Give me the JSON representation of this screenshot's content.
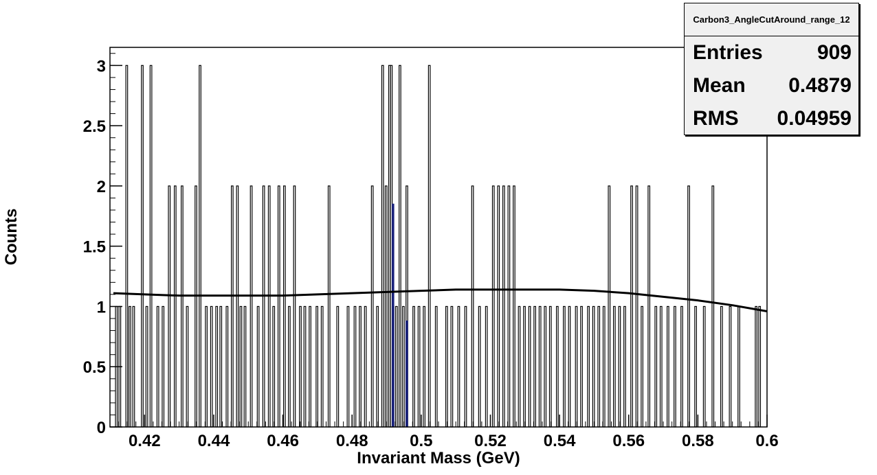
{
  "chart_data": {
    "type": "bar",
    "xlabel": "Invariant Mass (GeV)",
    "ylabel": "Counts",
    "xlim": [
      0.41,
      0.6
    ],
    "ylim": [
      0,
      3.15
    ],
    "x_ticks": [
      "0.42",
      "0.44",
      "0.46",
      "0.48",
      "0.5",
      "0.52",
      "0.54",
      "0.56",
      "0.58",
      "0.6"
    ],
    "y_ticks": [
      "0",
      "0.5",
      "1",
      "1.5",
      "2",
      "2.5",
      "3"
    ],
    "bins": {
      "x": [
        0.4116,
        0.4126,
        0.4146,
        0.4155,
        0.4166,
        0.4191,
        0.4204,
        0.4216,
        0.4236,
        0.4251,
        0.4269,
        0.4286,
        0.4306,
        0.4321,
        0.4346,
        0.4358,
        0.4376,
        0.4391,
        0.4406,
        0.4418,
        0.4436,
        0.4451,
        0.4466,
        0.4476,
        0.4488,
        0.4506,
        0.4526,
        0.4542,
        0.4558,
        0.4571,
        0.4586,
        0.4602,
        0.4616,
        0.4631,
        0.4648,
        0.4661,
        0.4676,
        0.4696,
        0.4711,
        0.4731,
        0.4756,
        0.4786,
        0.4806,
        0.4821,
        0.4836,
        0.4856,
        0.4871,
        0.4886,
        0.4896,
        0.4906,
        0.4911,
        0.4916,
        0.4926,
        0.4936,
        0.4946,
        0.4956,
        0.4976,
        0.4991,
        0.5006,
        0.5021,
        0.5041,
        0.5071,
        0.5086,
        0.5106,
        0.5126,
        0.5146,
        0.5166,
        0.5186,
        0.5206,
        0.5221,
        0.5236,
        0.5251,
        0.5266,
        0.5281,
        0.5296,
        0.5311,
        0.5326,
        0.5341,
        0.5356,
        0.5371,
        0.5391,
        0.5411,
        0.5426,
        0.5446,
        0.5461,
        0.5481,
        0.5496,
        0.5511,
        0.5526,
        0.5541,
        0.5556,
        0.5571,
        0.5586,
        0.5606,
        0.5621,
        0.5636,
        0.5656,
        0.5676,
        0.5691,
        0.5711,
        0.5731,
        0.5751,
        0.5771,
        0.5791,
        0.5816,
        0.5841,
        0.5866,
        0.5891,
        0.5916,
        0.5966,
        0.5976
      ],
      "counts": [
        1,
        1,
        3,
        1,
        1,
        3,
        1,
        3,
        1,
        1,
        2,
        2,
        2,
        1,
        2,
        3,
        1,
        1,
        1,
        1,
        1,
        2,
        2,
        1,
        1,
        2,
        1,
        2,
        2,
        1,
        2,
        2,
        1,
        2,
        1,
        1,
        1,
        1,
        1,
        2,
        1,
        1,
        1,
        1,
        1,
        2,
        1,
        3,
        2,
        3,
        3,
        1,
        1,
        3,
        1,
        2,
        1,
        1,
        1,
        3,
        1,
        1,
        1,
        1,
        1,
        2,
        1,
        1,
        2,
        2,
        2,
        2,
        2,
        1,
        1,
        1,
        1,
        1,
        1,
        1,
        1,
        1,
        1,
        1,
        1,
        1,
        1,
        1,
        1,
        2,
        1,
        1,
        1,
        2,
        2,
        1,
        2,
        1,
        1,
        1,
        1,
        1,
        2,
        1,
        1,
        2,
        1,
        1,
        1,
        1,
        1
      ]
    },
    "highlight_bins": {
      "x": [
        0.4916,
        0.4956
      ],
      "counts": [
        1.85,
        0.88
      ]
    },
    "fit_curve": {
      "x": [
        0.411,
        0.42,
        0.43,
        0.44,
        0.45,
        0.46,
        0.47,
        0.48,
        0.49,
        0.5,
        0.51,
        0.52,
        0.53,
        0.54,
        0.55,
        0.56,
        0.57,
        0.58,
        0.59,
        0.6
      ],
      "y": [
        1.11,
        1.1,
        1.09,
        1.09,
        1.09,
        1.09,
        1.1,
        1.11,
        1.12,
        1.13,
        1.14,
        1.14,
        1.14,
        1.14,
        1.13,
        1.11,
        1.08,
        1.05,
        1.01,
        0.96
      ]
    },
    "colors": {
      "histogram": "#000000",
      "highlight": "#1a237e",
      "fit": "#000000"
    }
  },
  "stats": {
    "title": "Carbon3_AngleCutAround_range_12",
    "entries_label": "Entries",
    "entries_value": "909",
    "mean_label": "Mean",
    "mean_value": "0.4879",
    "rms_label": "RMS",
    "rms_value": "0.04959"
  }
}
